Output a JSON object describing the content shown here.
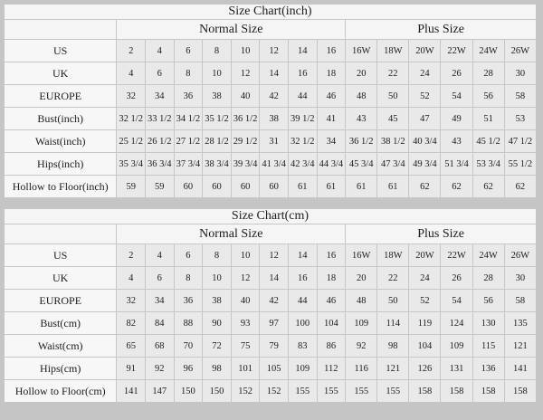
{
  "colors": {
    "page_bg": "#c5c5c5",
    "header_bg": "#f5f5f5",
    "label_bg": "#f7f7f7",
    "cell_bg": "#e9e9e9",
    "border_color": "#c6c6c6",
    "text_color": "#1c1c1c"
  },
  "chart_data": [
    {
      "type": "table",
      "id": "inch",
      "title": "Size Chart(inch)",
      "column_groups": [
        {
          "label": "",
          "span": 1
        },
        {
          "label": "Normal Size",
          "span": 8
        },
        {
          "label": "Plus Size",
          "span": 6
        }
      ],
      "rows": [
        {
          "label": "US",
          "values": [
            "2",
            "4",
            "6",
            "8",
            "10",
            "12",
            "14",
            "16",
            "16W",
            "18W",
            "20W",
            "22W",
            "24W",
            "26W"
          ]
        },
        {
          "label": "UK",
          "values": [
            "4",
            "6",
            "8",
            "10",
            "12",
            "14",
            "16",
            "18",
            "20",
            "22",
            "24",
            "26",
            "28",
            "30"
          ]
        },
        {
          "label": "EUROPE",
          "values": [
            "32",
            "34",
            "36",
            "38",
            "40",
            "42",
            "44",
            "46",
            "48",
            "50",
            "52",
            "54",
            "56",
            "58"
          ]
        },
        {
          "label": "Bust(inch)",
          "values": [
            "32 1/2",
            "33 1/2",
            "34 1/2",
            "35 1/2",
            "36 1/2",
            "38",
            "39 1/2",
            "41",
            "43",
            "45",
            "47",
            "49",
            "51",
            "53"
          ]
        },
        {
          "label": "Waist(inch)",
          "values": [
            "25 1/2",
            "26 1/2",
            "27 1/2",
            "28 1/2",
            "29 1/2",
            "31",
            "32 1/2",
            "34",
            "36 1/2",
            "38 1/2",
            "40 3/4",
            "43",
            "45 1/2",
            "47 1/2"
          ]
        },
        {
          "label": "Hips(inch)",
          "values": [
            "35 3/4",
            "36 3/4",
            "37 3/4",
            "38 3/4",
            "39 3/4",
            "41 3/4",
            "42 3/4",
            "44 3/4",
            "45 3/4",
            "47 3/4",
            "49 3/4",
            "51 3/4",
            "53 3/4",
            "55 1/2"
          ]
        },
        {
          "label": "Hollow to Floor(inch)",
          "values": [
            "59",
            "59",
            "60",
            "60",
            "60",
            "60",
            "61",
            "61",
            "61",
            "61",
            "62",
            "62",
            "62",
            "62"
          ]
        }
      ]
    },
    {
      "type": "table",
      "id": "cm",
      "title": "Size Chart(cm)",
      "column_groups": [
        {
          "label": "",
          "span": 1
        },
        {
          "label": "Normal Size",
          "span": 8
        },
        {
          "label": "Plus Size",
          "span": 6
        }
      ],
      "rows": [
        {
          "label": "US",
          "values": [
            "2",
            "4",
            "6",
            "8",
            "10",
            "12",
            "14",
            "16",
            "16W",
            "18W",
            "20W",
            "22W",
            "24W",
            "26W"
          ]
        },
        {
          "label": "UK",
          "values": [
            "4",
            "6",
            "8",
            "10",
            "12",
            "14",
            "16",
            "18",
            "20",
            "22",
            "24",
            "26",
            "28",
            "30"
          ]
        },
        {
          "label": "EUROPE",
          "values": [
            "32",
            "34",
            "36",
            "38",
            "40",
            "42",
            "44",
            "46",
            "48",
            "50",
            "52",
            "54",
            "56",
            "58"
          ]
        },
        {
          "label": "Bust(cm)",
          "values": [
            "82",
            "84",
            "88",
            "90",
            "93",
            "97",
            "100",
            "104",
            "109",
            "114",
            "119",
            "124",
            "130",
            "135"
          ]
        },
        {
          "label": "Waist(cm)",
          "values": [
            "65",
            "68",
            "70",
            "72",
            "75",
            "79",
            "83",
            "86",
            "92",
            "98",
            "104",
            "109",
            "115",
            "121"
          ]
        },
        {
          "label": "Hips(cm)",
          "values": [
            "91",
            "92",
            "96",
            "98",
            "101",
            "105",
            "109",
            "112",
            "116",
            "121",
            "126",
            "131",
            "136",
            "141"
          ]
        },
        {
          "label": "Hollow to Floor(cm)",
          "values": [
            "141",
            "147",
            "150",
            "150",
            "152",
            "152",
            "155",
            "155",
            "155",
            "155",
            "158",
            "158",
            "158",
            "158"
          ]
        }
      ]
    }
  ]
}
